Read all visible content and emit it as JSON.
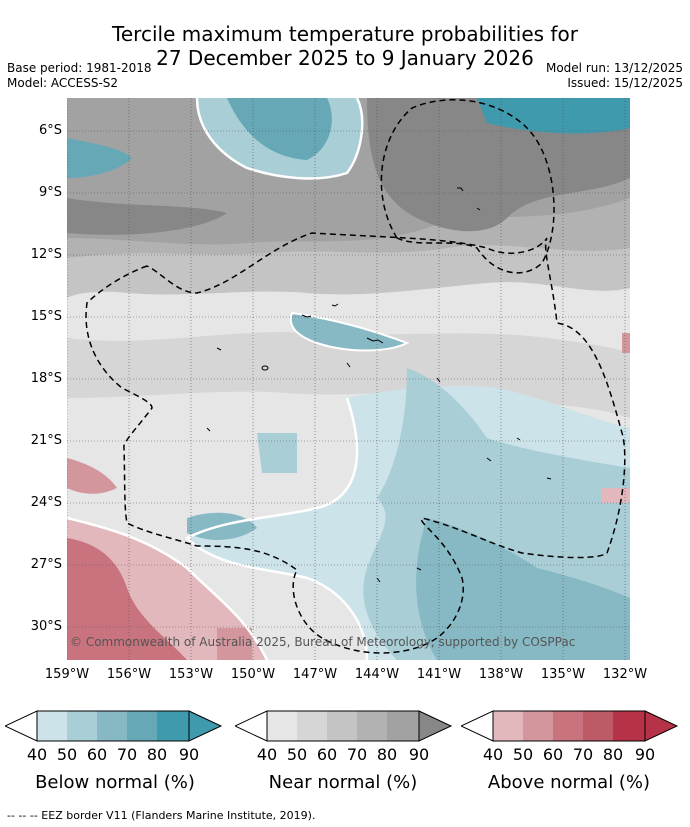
{
  "title": {
    "line1": "Tercile maximum temperature probabilities for",
    "line2": "27 December 2025 to 9 January 2026"
  },
  "meta": {
    "base_period": "Base period: 1981-2018",
    "model": "Model: ACCESS-S2",
    "model_run": "Model run: 13/12/2025",
    "issued": "Issued: 15/12/2025"
  },
  "map": {
    "copyright": "© Commonwealth of Australia 2025, Bureau of Meteorology, supported by COSPPac",
    "lat_labels": [
      "6°S",
      "9°S",
      "12°S",
      "15°S",
      "18°S",
      "21°S",
      "24°S",
      "27°S",
      "30°S"
    ],
    "lon_labels": [
      "159°W",
      "156°W",
      "153°W",
      "150°W",
      "147°W",
      "144°W",
      "141°W",
      "138°W",
      "135°W",
      "132°W"
    ],
    "colors": {
      "below": [
        "#cde3ea",
        "#a9ced6",
        "#87b9c4",
        "#66a8b6",
        "#3f9aad",
        "#2f8ca3"
      ],
      "near": [
        "#e6e6e6",
        "#d6d6d6",
        "#c4c4c4",
        "#b2b2b2",
        "#a2a2a2",
        "#878787"
      ],
      "above": [
        "#e2b8bd",
        "#d4969d",
        "#c8737d",
        "#bc5a66",
        "#b63347"
      ],
      "coast": "#000000",
      "eez": "#000000"
    }
  },
  "legend": {
    "ticks": [
      "40",
      "50",
      "60",
      "70",
      "80",
      "90"
    ],
    "below_title": "Below normal (%)",
    "near_title": "Near normal (%)",
    "above_title": "Above normal (%)"
  },
  "footnote": "--  --  -- EEZ border V11 (Flanders Marine Institute, 2019)."
}
